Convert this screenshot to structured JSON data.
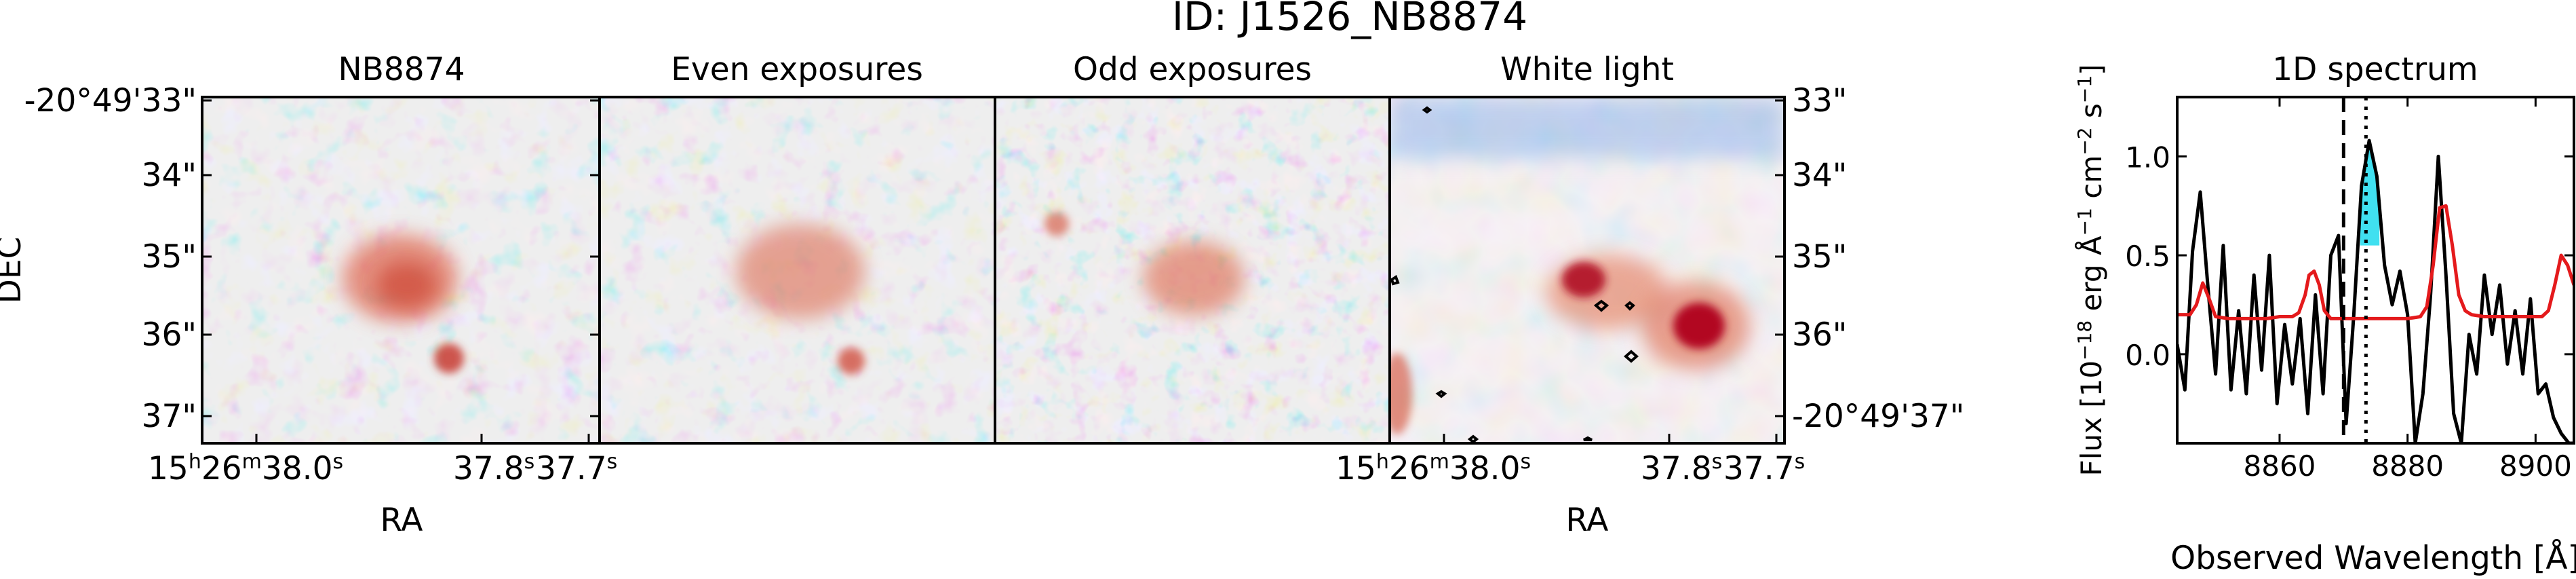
{
  "figure": {
    "title": "ID: J1526_NB8874"
  },
  "panels": {
    "nb": {
      "title": "NB8874"
    },
    "even": {
      "title": "Even exposures"
    },
    "odd": {
      "title": "Odd exposures"
    },
    "white": {
      "title": "White light"
    }
  },
  "axes": {
    "dec_label": "DEC",
    "ra_label": "RA",
    "left_dec_ticks": [
      "-20°49'33\"",
      "34\"",
      "35\"",
      "36\"",
      "37\""
    ],
    "right_dec_ticks": [
      "33\"",
      "34\"",
      "35\"",
      "36\"",
      "-20°49'37\""
    ],
    "ra_ticks": {
      "first_base": "15",
      "first_h": "h",
      "first_mid": "26",
      "first_m": "m",
      "first_tail": "38.0",
      "first_s": "s",
      "mid": "37.8",
      "mid_s": "s",
      "last": "37.7",
      "last_s": "s"
    }
  },
  "colors": {
    "colormap": "coolwarm",
    "contour": "#000000",
    "spectrum_line": "#000000",
    "model_line": "#e41a1c",
    "fill_band": "#40e0f0"
  },
  "chart_data": [
    {
      "type": "heatmap",
      "title": "NB8874",
      "colormap": "coolwarm",
      "features": "diffuse red emission blob near image center with a compact knot below it"
    },
    {
      "type": "heatmap",
      "title": "Even exposures",
      "colormap": "coolwarm"
    },
    {
      "type": "heatmap",
      "title": "Odd exposures",
      "colormap": "coolwarm"
    },
    {
      "type": "heatmap",
      "title": "White light",
      "colormap": "coolwarm",
      "contours": true,
      "features": "two bright red sources (center-left and right)"
    },
    {
      "type": "line",
      "title": "1D spectrum",
      "xlabel": "Observed Wavelength [Å]",
      "ylabel_parts": {
        "prefix": "Flux [10",
        "exp1": "−18",
        "mid": " erg Å",
        "exp2": "−1",
        "mid2": " cm",
        "exp3": "−2",
        "mid3": " s",
        "exp4": "−1",
        "suffix": "]"
      },
      "xlim": [
        8844,
        8906
      ],
      "ylim": [
        -0.45,
        1.3
      ],
      "xticks": [
        8860,
        8880,
        8900
      ],
      "yticks": [
        0.0,
        0.5,
        1.0
      ],
      "ytick_labels": [
        "0.0",
        "0.5",
        "1.0"
      ],
      "xtick_labels": [
        "8860",
        "8880",
        "8900"
      ],
      "vlines": [
        {
          "x": 8870,
          "style": "dashed"
        },
        {
          "x": 8873.5,
          "style": "dotted"
        }
      ],
      "series": [
        {
          "style": "black",
          "x": [
            8844,
            8845.2,
            8846.4,
            8847.6,
            8848.8,
            8850.0,
            8851.2,
            8852.4,
            8853.6,
            8854.8,
            8856.0,
            8857.2,
            8858.4,
            8859.6,
            8860.8,
            8862.0,
            8863.2,
            8864.4,
            8865.6,
            8866.8,
            8868.0,
            8869.2,
            8870.4,
            8871.6,
            8872.8,
            8874.0,
            8875.2,
            8876.4,
            8877.6,
            8878.8,
            8880.0,
            8881.2,
            8882.4,
            8883.6,
            8884.8,
            8886.0,
            8887.2,
            8888.4,
            8889.6,
            8890.8,
            8892.0,
            8893.2,
            8894.4,
            8895.6,
            8896.8,
            8898.0,
            8899.2,
            8900.4,
            8901.6,
            8902.8,
            8904.0,
            8905.2,
            8906.0
          ],
          "y": [
            0.05,
            -0.18,
            0.52,
            0.82,
            0.34,
            -0.1,
            0.55,
            -0.18,
            0.22,
            -0.2,
            0.4,
            -0.08,
            0.5,
            -0.25,
            0.15,
            -0.15,
            0.18,
            -0.3,
            0.3,
            -0.2,
            0.5,
            0.6,
            -0.35,
            0.2,
            0.85,
            1.08,
            0.9,
            0.45,
            0.25,
            0.42,
            0.2,
            -0.45,
            -0.2,
            0.3,
            1.0,
            0.4,
            -0.3,
            -0.45,
            0.1,
            -0.1,
            0.4,
            0.1,
            0.35,
            -0.05,
            0.22,
            -0.1,
            0.28,
            -0.2,
            -0.15,
            -0.32,
            -0.4,
            -0.45,
            -0.45
          ]
        },
        {
          "style": "red",
          "x": [
            8844,
            8845,
            8846,
            8847,
            8848,
            8849,
            8850,
            8852,
            8854,
            8856,
            8858,
            8860,
            8862,
            8863,
            8864,
            8864.6,
            8865.4,
            8866.2,
            8867,
            8868,
            8870,
            8872,
            8874,
            8876,
            8878,
            8880,
            8882,
            8883,
            8884,
            8885,
            8886,
            8887,
            8888,
            8889,
            8890,
            8892,
            8894,
            8896,
            8898,
            8900,
            8901,
            8902,
            8903,
            8904,
            8905,
            8906
          ],
          "y": [
            0.2,
            0.2,
            0.2,
            0.25,
            0.36,
            0.28,
            0.19,
            0.18,
            0.18,
            0.18,
            0.18,
            0.19,
            0.19,
            0.21,
            0.3,
            0.4,
            0.42,
            0.35,
            0.22,
            0.18,
            0.18,
            0.18,
            0.18,
            0.18,
            0.18,
            0.18,
            0.19,
            0.24,
            0.45,
            0.74,
            0.75,
            0.55,
            0.3,
            0.22,
            0.2,
            0.19,
            0.19,
            0.19,
            0.19,
            0.19,
            0.19,
            0.22,
            0.35,
            0.5,
            0.45,
            0.35
          ]
        }
      ],
      "fill_between": {
        "x": [
          8872.6,
          8875.6
        ],
        "y_top": "black series",
        "y_bottom": 0.55
      }
    }
  ]
}
